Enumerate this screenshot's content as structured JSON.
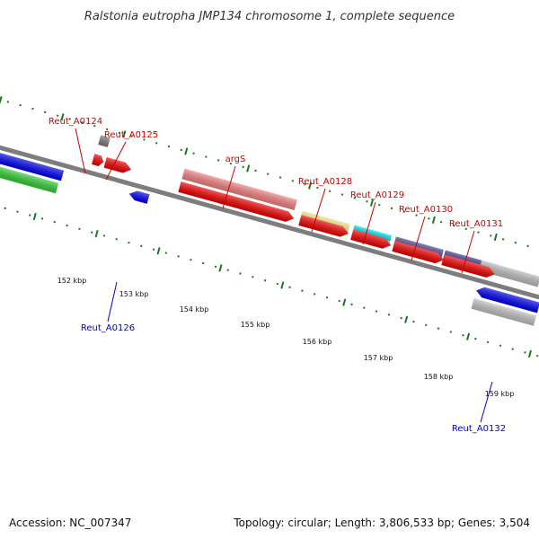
{
  "title": "Ralstonia eutropha JMP134 chromosome 1, complete sequence",
  "footer": {
    "accession": "Accession: NC_007347",
    "summary": "Topology: circular; Length: 3,806,533 bp; Genes: 3,504"
  },
  "colors": {
    "backbone": "#808080",
    "dots": "#1a7a1a",
    "forward_label": "#cc0000",
    "reverse_label": "#0000cc"
  },
  "scale_labels": [
    "152 kbp",
    "153 kbp",
    "154 kbp",
    "155 kbp",
    "156 kbp",
    "157 kbp",
    "158 kbp",
    "159 kbp"
  ],
  "gene_labels": [
    {
      "text": "Reut_A0124",
      "strand": "forward"
    },
    {
      "text": "Reut_A0125",
      "strand": "forward"
    },
    {
      "text": "argS",
      "strand": "forward"
    },
    {
      "text": "Reut_A0128",
      "strand": "forward"
    },
    {
      "text": "Reut_A0129",
      "strand": "forward"
    },
    {
      "text": "Reut_A0130",
      "strand": "forward"
    },
    {
      "text": "Reut_A0131",
      "strand": "forward"
    },
    {
      "text": "Reut_A0126",
      "strand": "reverse"
    },
    {
      "text": "Reut_A0132",
      "strand": "reverse"
    }
  ]
}
